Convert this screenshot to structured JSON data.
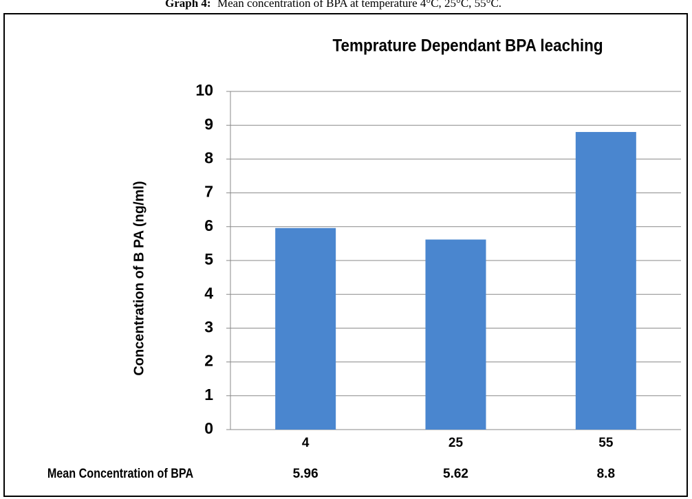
{
  "caption": {
    "label": "Graph 4:",
    "text": "Mean concentration of BPA at temperature 4°C, 25°C, 55°C."
  },
  "chart_data": {
    "type": "bar",
    "title": "Temprature Dependant BPA leaching",
    "y_label": "Concentration of B PA (ng/ml)",
    "categories": [
      "4",
      "25",
      "55"
    ],
    "values": [
      5.96,
      5.62,
      8.8
    ],
    "data_table_label": "Mean Concentration of BPA",
    "color": "#4a86cf",
    "ylim": [
      0,
      10
    ],
    "yticks": [
      0,
      1,
      2,
      3,
      4,
      5,
      6,
      7,
      8,
      9,
      10
    ],
    "grid": true
  }
}
